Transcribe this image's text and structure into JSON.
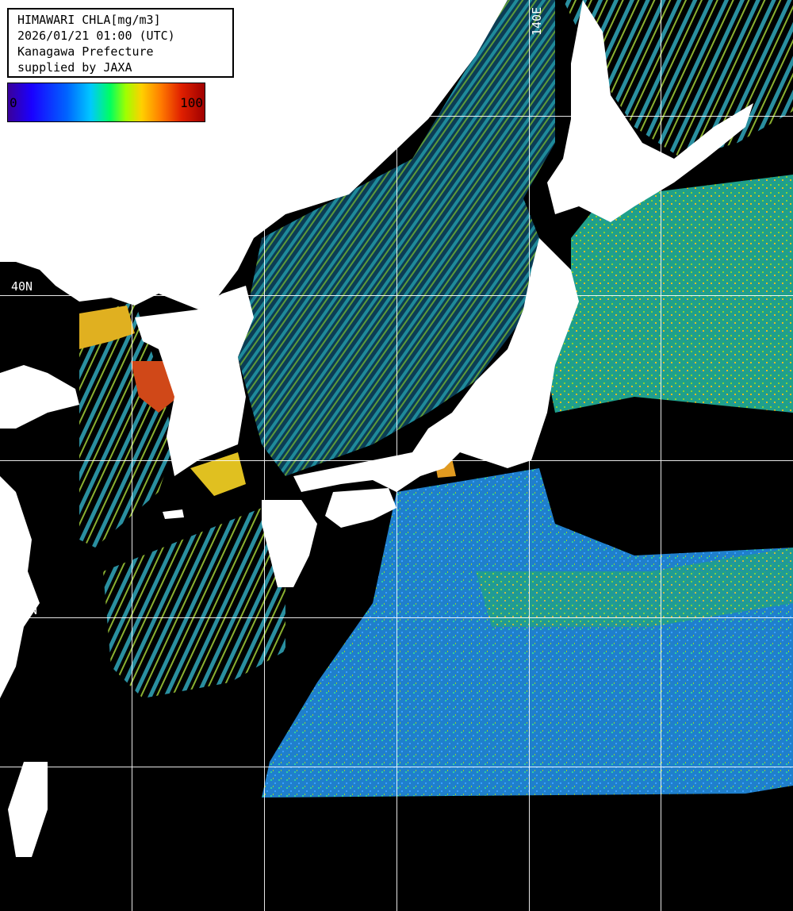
{
  "info": {
    "product": "HIMAWARI CHLA[mg/m3]",
    "datetime": "2026/01/21 01:00 (UTC)",
    "region": "Kanagawa Prefecture",
    "credit": "supplied by JAXA"
  },
  "colorbar": {
    "min_label": "0",
    "max_label": "100",
    "min_value": 0,
    "max_value": 100
  },
  "grid": {
    "lon_label": "140E",
    "lat_label_40": "40N",
    "lat_label_30": "30N"
  },
  "colors": {
    "land": "#ffffff",
    "no_data": "#000000",
    "grid": "#ffffff"
  }
}
